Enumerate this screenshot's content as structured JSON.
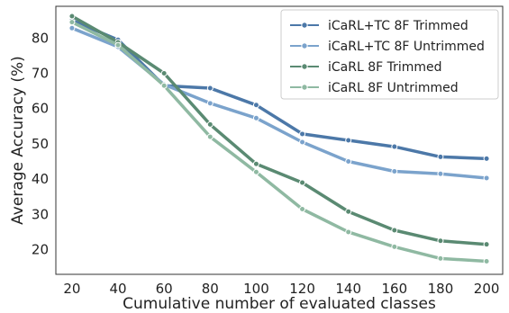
{
  "chart_data": {
    "type": "line",
    "title": "",
    "xlabel": "Cumulative number of evaluated classes",
    "ylabel": "Average Accuracy (%)",
    "x": [
      20,
      40,
      60,
      80,
      100,
      120,
      140,
      160,
      180,
      200
    ],
    "xlim": [
      13,
      207
    ],
    "ylim": [
      13,
      89
    ],
    "yticks": [
      20,
      30,
      40,
      50,
      60,
      70,
      80
    ],
    "grid": false,
    "legend_position": "top-right",
    "series": [
      {
        "name": "iCaRL+TC 8F Trimmed",
        "color": "#4c78a8",
        "values": [
          85.0,
          79.5,
          66.5,
          65.8,
          61.0,
          52.8,
          51.0,
          49.2,
          46.3,
          45.8
        ]
      },
      {
        "name": "iCaRL+TC 8F Untrimmed",
        "color": "#7ba3cc",
        "values": [
          82.8,
          77.5,
          66.8,
          61.5,
          57.3,
          50.5,
          45.0,
          42.2,
          41.5,
          40.3
        ]
      },
      {
        "name": "iCaRL 8F Trimmed",
        "color": "#5a8a72",
        "values": [
          86.2,
          78.8,
          70.0,
          55.5,
          44.3,
          39.0,
          30.8,
          25.5,
          22.5,
          21.5
        ]
      },
      {
        "name": "iCaRL 8F Untrimmed",
        "color": "#8fb9a2",
        "values": [
          84.5,
          78.0,
          66.5,
          52.0,
          42.0,
          31.5,
          25.0,
          20.8,
          17.5,
          16.7
        ]
      }
    ]
  }
}
